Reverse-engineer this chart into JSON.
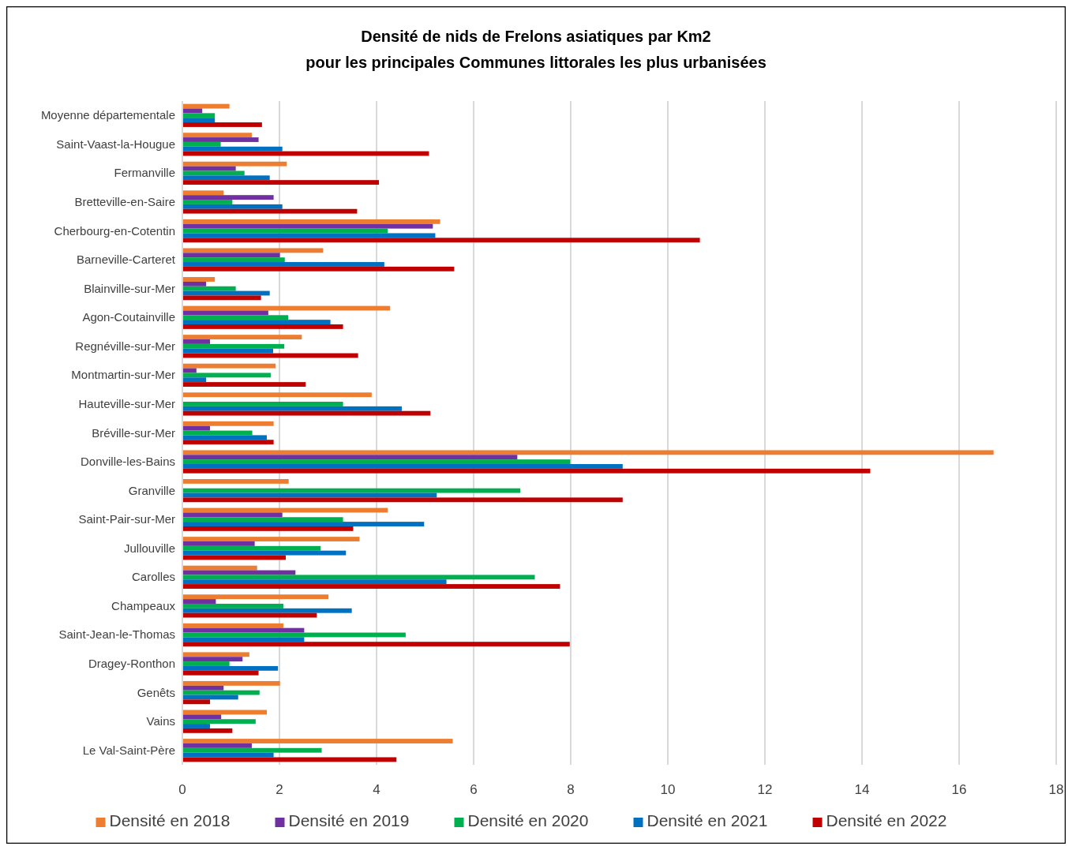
{
  "chart_data": {
    "type": "bar",
    "orientation": "horizontal",
    "title": "Densité de nids de Frelons asiatiques par Km2\npour les principales Communes littorales les plus urbanisées",
    "categories": [
      "Moyenne départementale",
      "Saint-Vaast-la-Hougue",
      "Fermanville",
      "Bretteville-en-Saire",
      "Cherbourg-en-Cotentin",
      "Barneville-Carteret",
      "Blainville-sur-Mer",
      "Agon-Coutainville",
      "Regnéville-sur-Mer",
      "Montmartin-sur-Mer",
      "Hauteville-sur-Mer",
      "Bréville-sur-Mer",
      "Donville-les-Bains",
      "Granville",
      "Saint-Pair-sur-Mer",
      "Jullouville",
      "Carolles",
      "Champeaux",
      "Saint-Jean-le-Thomas",
      "Dragey-Ronthon",
      "Genêts",
      "Vains",
      "Le Val-Saint-Père"
    ],
    "series": [
      {
        "name": "Densité en 2018",
        "color": "#ed7d31",
        "values": [
          0.97,
          1.43,
          2.15,
          0.85,
          5.31,
          2.9,
          0.67,
          4.28,
          2.46,
          1.92,
          3.9,
          1.88,
          16.71,
          2.19,
          4.23,
          3.65,
          1.54,
          3.01,
          2.08,
          1.38,
          2.01,
          1.74,
          5.57
        ]
      },
      {
        "name": "Densité en 2019",
        "color": "#7030a0",
        "values": [
          0.41,
          1.57,
          1.1,
          1.88,
          5.16,
          2.01,
          0.49,
          1.77,
          0.57,
          0.29,
          null,
          0.57,
          6.9,
          null,
          2.06,
          1.49,
          2.33,
          0.69,
          2.51,
          1.24,
          0.85,
          0.8,
          1.43
        ]
      },
      {
        "name": "Densité en 2020",
        "color": "#00b050",
        "values": [
          0.67,
          0.79,
          1.28,
          1.03,
          4.23,
          2.11,
          1.1,
          2.18,
          2.1,
          1.82,
          3.31,
          1.44,
          7.99,
          6.96,
          3.31,
          2.85,
          7.26,
          2.08,
          4.6,
          0.97,
          1.59,
          1.51,
          2.87
        ]
      },
      {
        "name": "Densité en 2021",
        "color": "#0070c0",
        "values": [
          0.67,
          2.06,
          1.8,
          2.06,
          5.21,
          4.16,
          1.8,
          3.05,
          1.87,
          0.49,
          4.52,
          1.74,
          9.07,
          5.24,
          4.98,
          3.37,
          5.44,
          3.49,
          2.51,
          1.97,
          1.15,
          0.57,
          1.88
        ]
      },
      {
        "name": "Densité en 2022",
        "color": "#c00000",
        "values": [
          1.64,
          5.08,
          4.05,
          3.6,
          10.66,
          5.6,
          1.62,
          3.31,
          3.62,
          2.54,
          5.11,
          1.88,
          14.17,
          9.07,
          3.52,
          2.13,
          7.78,
          2.77,
          7.98,
          1.57,
          0.57,
          1.03,
          4.41
        ]
      }
    ],
    "xlim": [
      0,
      18
    ],
    "xticks": [
      0,
      2,
      4,
      6,
      8,
      10,
      12,
      14,
      16,
      18
    ],
    "grid": "x",
    "legend": "bottom"
  }
}
